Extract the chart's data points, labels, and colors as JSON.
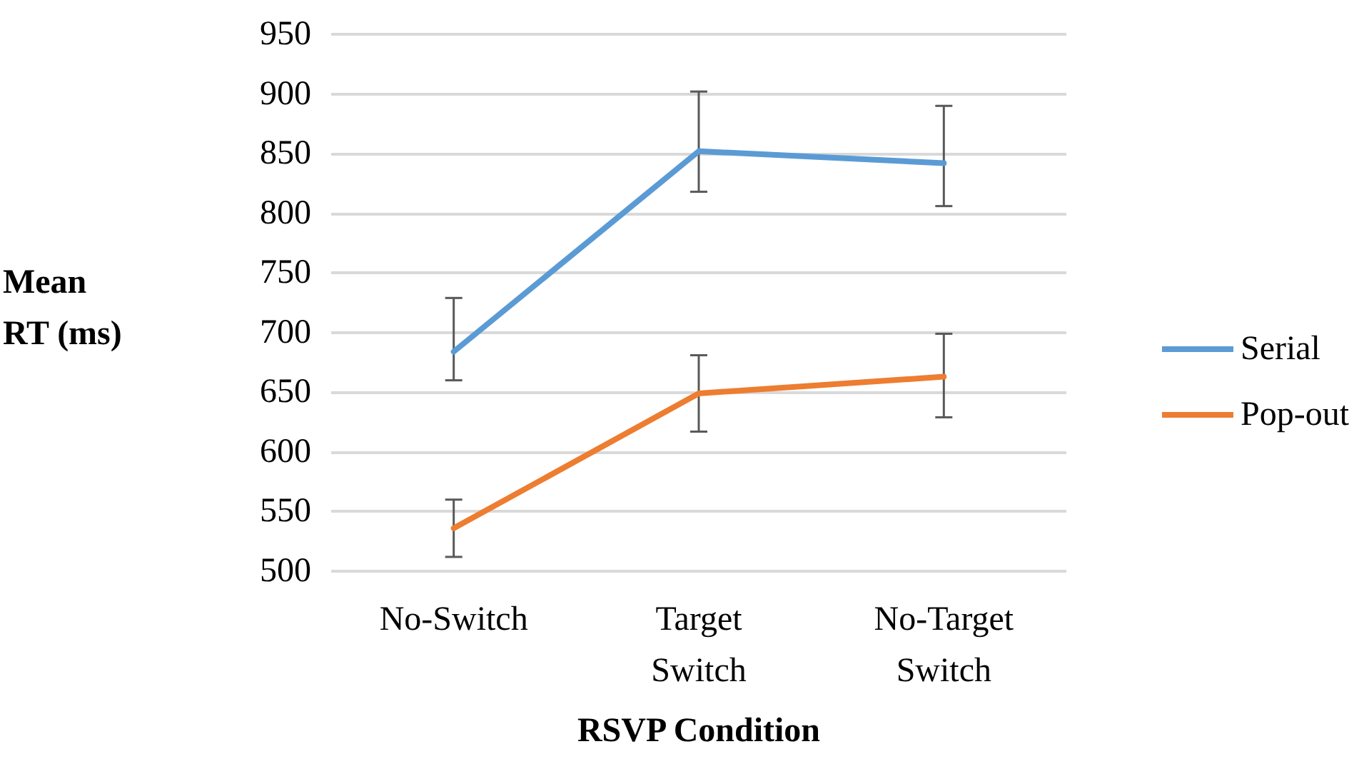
{
  "chart_data": {
    "type": "line",
    "xlabel": "RSVP Condition",
    "ylabel": "Mean RT (ms)",
    "categories": [
      "No-Switch",
      "Target Switch",
      "No-Target Switch"
    ],
    "series": [
      {
        "name": "Serial",
        "color": "#5b9bd5",
        "values": [
          684,
          852,
          842
        ],
        "errors": [
          [
            660,
            729
          ],
          [
            818,
            902
          ],
          [
            806,
            890
          ]
        ]
      },
      {
        "name": "Pop-out",
        "color": "#ed7d31",
        "values": [
          536,
          649,
          663
        ],
        "errors": [
          [
            512,
            560
          ],
          [
            617,
            681
          ],
          [
            629,
            699
          ]
        ]
      }
    ],
    "ylim": [
      500,
      950
    ],
    "yticks": [
      500,
      550,
      600,
      650,
      700,
      750,
      800,
      850,
      900,
      950
    ],
    "grid": "y",
    "legend": "right",
    "marker": "none",
    "line_style": "solid"
  }
}
